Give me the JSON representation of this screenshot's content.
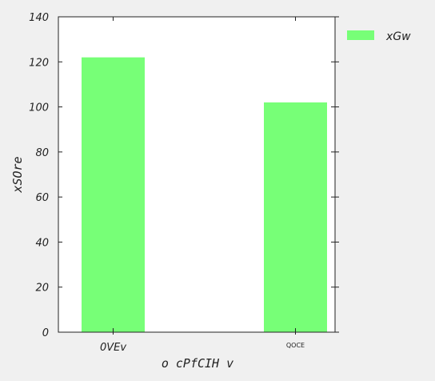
{
  "chart_data": {
    "type": "bar",
    "categories": [
      "0VEv",
      "QOCE"
    ],
    "series": [
      {
        "name": "xGw",
        "values": [
          122,
          102
        ],
        "color": "#77ff77"
      }
    ],
    "xlabel": "o cPfCIH v",
    "ylabel": "xSOre",
    "ylim": [
      0,
      140
    ],
    "yticks": [
      0,
      20,
      40,
      60,
      80,
      100,
      120,
      140
    ],
    "grid": false,
    "legend_position": "outside-right-top"
  }
}
